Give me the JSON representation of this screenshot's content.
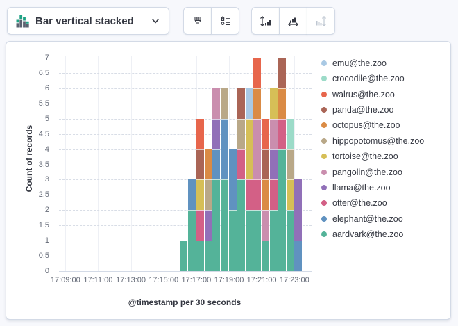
{
  "toolbar": {
    "chart_type_label": "Bar vertical stacked",
    "icons": {
      "chart_type": "stacked-bar-chart-icon",
      "dropdown": "chevron-down-icon",
      "style": "paintbrush-icon",
      "legend": "legend-list-icon",
      "axis_left": "vertical-axis-arrows-icon",
      "axis_bottom": "horizontal-axis-arrows-icon",
      "axis_right": "right-axis-arrows-icon"
    },
    "axis_right_disabled": true
  },
  "colors": {
    "page_bg": "#f7f8fc",
    "panel_border": "#d3dae6",
    "text_dark": "#343741",
    "text_muted": "#646a77",
    "icon_disabled": "#bfc7d2",
    "icon_green": "#1fa284",
    "icon_gray": "#5a6270"
  },
  "chart_data": {
    "type": "bar",
    "stacked": true,
    "orientation": "vertical",
    "ylabel": "Count of records",
    "xlabel": "@timestamp per 30 seconds",
    "ylim": [
      0,
      7
    ],
    "grid": true,
    "legend_position": "right",
    "y_axis_ticks": [
      "0",
      "0.5",
      "1",
      "1.5",
      "2",
      "2.5",
      "3",
      "3.5",
      "4",
      "4.5",
      "5",
      "5.5",
      "6",
      "6.5",
      "7"
    ],
    "x_axis_ticks": [
      "17:09:00",
      "17:11:00",
      "17:13:00",
      "17:15:00",
      "17:17:00",
      "17:19:00",
      "17:21:00",
      "17:23:00"
    ],
    "buckets": [
      "17:16:00",
      "17:16:30",
      "17:17:00",
      "17:17:30",
      "17:18:00",
      "17:18:30",
      "17:19:00",
      "17:19:30",
      "17:20:00",
      "17:20:30",
      "17:21:00",
      "17:21:30",
      "17:22:00",
      "17:22:30",
      "17:23:00"
    ],
    "series_bottom_to_top": [
      {
        "name": "aardvark@the.zoo",
        "color": "#54B399",
        "values": [
          1,
          2,
          1,
          1,
          3,
          3,
          2,
          3,
          2,
          2,
          1,
          2,
          4,
          2,
          0
        ]
      },
      {
        "name": "elephant@the.zoo",
        "color": "#6092C0",
        "values": [
          0,
          1,
          0,
          0,
          1,
          2,
          2,
          0,
          0,
          0,
          0,
          0,
          0,
          0,
          1
        ]
      },
      {
        "name": "otter@the.zoo",
        "color": "#D36086",
        "values": [
          0,
          0,
          1,
          0,
          0,
          0,
          0,
          1,
          1,
          1,
          0,
          1,
          1,
          0,
          0
        ]
      },
      {
        "name": "llama@the.zoo",
        "color": "#9170B8",
        "values": [
          0,
          0,
          0,
          1,
          1,
          0,
          0,
          0,
          0,
          0,
          0,
          1,
          0,
          0,
          2
        ]
      },
      {
        "name": "pangolin@the.zoo",
        "color": "#CA8EAE",
        "values": [
          0,
          0,
          0,
          0,
          1,
          0,
          0,
          0,
          0,
          2,
          1,
          1,
          0,
          0,
          0
        ]
      },
      {
        "name": "tortoise@the.zoo",
        "color": "#D6BF57",
        "values": [
          0,
          0,
          1,
          0,
          0,
          0,
          0,
          0,
          2,
          0,
          0,
          1,
          0,
          1,
          0
        ]
      },
      {
        "name": "hippopotomus@the.zoo",
        "color": "#B9A888",
        "values": [
          0,
          0,
          0,
          1,
          0,
          1,
          0,
          1,
          0,
          0,
          0,
          0,
          0,
          1,
          0
        ]
      },
      {
        "name": "octopus@the.zoo",
        "color": "#DA8B45",
        "values": [
          0,
          0,
          0,
          1,
          0,
          0,
          0,
          0,
          0,
          1,
          1,
          0,
          1,
          0,
          0
        ]
      },
      {
        "name": "panda@the.zoo",
        "color": "#AA6556",
        "values": [
          0,
          0,
          1,
          0,
          0,
          0,
          0,
          1,
          0,
          0,
          1,
          0,
          1,
          0,
          0
        ]
      },
      {
        "name": "walrus@the.zoo",
        "color": "#E7664C",
        "values": [
          0,
          0,
          1,
          0,
          0,
          0,
          0,
          0,
          0,
          1,
          1,
          0,
          0,
          0,
          0
        ]
      },
      {
        "name": "crocodile@the.zoo",
        "color": "#9CDBC8",
        "values": [
          0,
          0,
          0,
          0,
          0,
          0,
          0,
          0,
          0,
          0,
          0,
          0,
          0,
          1,
          0
        ]
      },
      {
        "name": "emu@the.zoo",
        "color": "#A9C9E4",
        "values": [
          0,
          0,
          0,
          0,
          0,
          0,
          0,
          0,
          1,
          0,
          0,
          0,
          0,
          0,
          0
        ]
      }
    ],
    "legend_order_top_to_bottom": [
      "emu@the.zoo",
      "crocodile@the.zoo",
      "walrus@the.zoo",
      "panda@the.zoo",
      "octopus@the.zoo",
      "hippopotomus@the.zoo",
      "tortoise@the.zoo",
      "pangolin@the.zoo",
      "llama@the.zoo",
      "otter@the.zoo",
      "elephant@the.zoo",
      "aardvark@the.zoo"
    ]
  }
}
